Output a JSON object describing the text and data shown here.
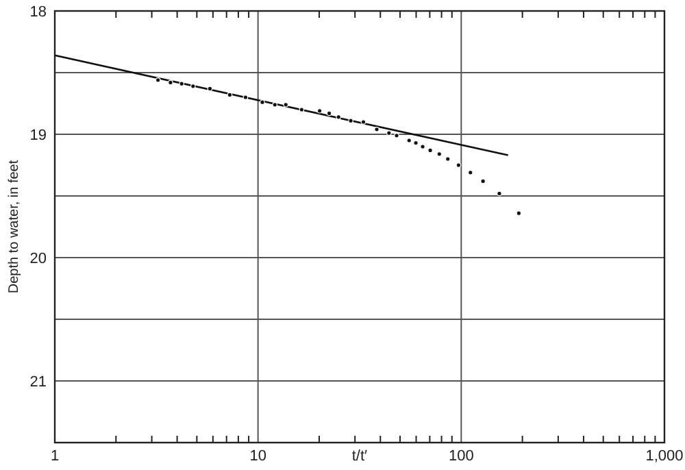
{
  "chart_data": {
    "type": "scatter",
    "xlabel": "t/t′",
    "ylabel": "Depth to water, in feet",
    "log": "x",
    "grid": true,
    "xlim": [
      1,
      1000
    ],
    "ylim": [
      21.5,
      18
    ],
    "xticks": [
      1,
      {
        "value": 2,
        "label": null
      },
      {
        "value": 3,
        "label": null
      },
      {
        "value": 4,
        "label": null
      },
      {
        "value": 5,
        "label": null
      },
      {
        "value": 6,
        "label": null
      },
      {
        "value": 7,
        "label": null
      },
      {
        "value": 8,
        "label": null
      },
      {
        "value": 9,
        "label": null
      },
      10,
      {
        "value": 20,
        "label": null
      },
      {
        "value": 30,
        "label": null
      },
      {
        "value": 40,
        "label": null
      },
      {
        "value": 50,
        "label": null
      },
      {
        "value": 60,
        "label": null
      },
      {
        "value": 70,
        "label": null
      },
      {
        "value": 80,
        "label": null
      },
      {
        "value": 90,
        "label": null
      },
      100,
      {
        "value": 200,
        "label": null
      },
      {
        "value": 300,
        "label": null
      },
      {
        "value": 400,
        "label": null
      },
      {
        "value": 500,
        "label": null
      },
      {
        "value": 600,
        "label": null
      },
      {
        "value": 700,
        "label": null
      },
      {
        "value": 800,
        "label": null
      },
      {
        "value": 900,
        "label": null
      },
      {
        "value": 1000,
        "label": "1,000"
      }
    ],
    "yticks": [
      18,
      {
        "value": 18.5,
        "label": null
      },
      19,
      {
        "value": 19.5,
        "label": null
      },
      20,
      {
        "value": 20.5,
        "label": null
      },
      21
    ],
    "series": [
      {
        "color": "#111111",
        "marker": "circle",
        "x": [
          3.22,
          3.71,
          4.21,
          4.79,
          5.8,
          7.26,
          8.68,
          10.5,
          12.1,
          13.7,
          16.4,
          20.1,
          22.4,
          24.9,
          28.6,
          33,
          38.4,
          44.1,
          48.1,
          55.4,
          59.8,
          64.6,
          70.4,
          78,
          85.9,
          97,
          111,
          128,
          154,
          192
        ],
        "values": [
          18.56,
          18.58,
          18.59,
          18.61,
          18.63,
          18.68,
          18.7,
          18.74,
          18.76,
          18.76,
          18.8,
          18.81,
          18.83,
          18.86,
          18.89,
          18.9,
          18.96,
          18.99,
          19.01,
          19.05,
          19.07,
          19.1,
          19.13,
          19.16,
          19.2,
          19.25,
          19.31,
          19.38,
          19.48,
          19.64
        ]
      },
      {
        "type": "line",
        "color": "#111111",
        "x": [
          1,
          170
        ],
        "values": [
          18.36,
          19.17
        ]
      }
    ]
  }
}
